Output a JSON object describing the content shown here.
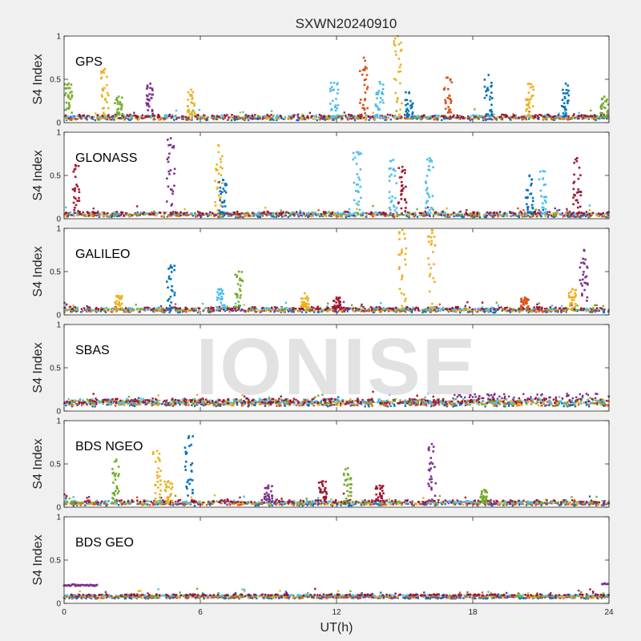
{
  "chart_data": {
    "type": "scatter",
    "title": "SXWN20240910",
    "watermark": "IONISE",
    "xlabel": "UT(h)",
    "ylabel": "S4 Index",
    "xlim": [
      0,
      24
    ],
    "ylim": [
      0,
      1
    ],
    "xticks": [
      0,
      6,
      12,
      18,
      24
    ],
    "yticks": [
      0,
      0.5,
      1
    ],
    "ytick_labels": [
      "0",
      "0.5",
      "1"
    ],
    "grid": false,
    "series_colors": [
      "#0072BD",
      "#D95319",
      "#EDB120",
      "#7E2F8E",
      "#77AC30",
      "#4DBEEE",
      "#A2142F"
    ],
    "panels": [
      {
        "label": "GPS",
        "baseline": 0.06,
        "noise": 0.03,
        "spikes": [
          {
            "x": 0.2,
            "peak": 0.45,
            "color": 4
          },
          {
            "x": 1.8,
            "peak": 0.62,
            "color": 2
          },
          {
            "x": 2.4,
            "peak": 0.3,
            "color": 4
          },
          {
            "x": 3.8,
            "peak": 0.45,
            "color": 3
          },
          {
            "x": 5.6,
            "peak": 0.38,
            "color": 2
          },
          {
            "x": 11.9,
            "peak": 0.46,
            "color": 5
          },
          {
            "x": 13.2,
            "peak": 0.75,
            "color": 1
          },
          {
            "x": 13.9,
            "peak": 0.47,
            "color": 5
          },
          {
            "x": 14.7,
            "peak": 1.0,
            "color": 2
          },
          {
            "x": 15.2,
            "peak": 0.35,
            "color": 0
          },
          {
            "x": 16.9,
            "peak": 0.52,
            "color": 1
          },
          {
            "x": 18.7,
            "peak": 0.55,
            "color": 0
          },
          {
            "x": 20.5,
            "peak": 0.45,
            "color": 2
          },
          {
            "x": 22.1,
            "peak": 0.45,
            "color": 0
          },
          {
            "x": 23.8,
            "peak": 0.3,
            "color": 4
          }
        ]
      },
      {
        "label": "GLONASS",
        "baseline": 0.05,
        "noise": 0.03,
        "spikes": [
          {
            "x": 0.5,
            "peak": 0.62,
            "color": 6
          },
          {
            "x": 4.7,
            "peak": 0.93,
            "color": 3
          },
          {
            "x": 6.8,
            "peak": 0.85,
            "color": 2
          },
          {
            "x": 7.0,
            "peak": 0.45,
            "color": 0
          },
          {
            "x": 12.9,
            "peak": 0.77,
            "color": 5
          },
          {
            "x": 14.5,
            "peak": 0.68,
            "color": 5
          },
          {
            "x": 14.9,
            "peak": 0.6,
            "color": 6
          },
          {
            "x": 16.1,
            "peak": 0.7,
            "color": 5
          },
          {
            "x": 20.5,
            "peak": 0.5,
            "color": 0
          },
          {
            "x": 21.1,
            "peak": 0.55,
            "color": 5
          },
          {
            "x": 22.6,
            "peak": 0.7,
            "color": 6
          }
        ]
      },
      {
        "label": "GALILEO",
        "baseline": 0.06,
        "noise": 0.03,
        "spikes": [
          {
            "x": 2.4,
            "peak": 0.22,
            "color": 2
          },
          {
            "x": 4.7,
            "peak": 0.57,
            "color": 0
          },
          {
            "x": 6.9,
            "peak": 0.3,
            "color": 5
          },
          {
            "x": 7.7,
            "peak": 0.5,
            "color": 4
          },
          {
            "x": 10.6,
            "peak": 0.25,
            "color": 2
          },
          {
            "x": 12.0,
            "peak": 0.2,
            "color": 6
          },
          {
            "x": 14.9,
            "peak": 0.98,
            "color": 2
          },
          {
            "x": 16.2,
            "peak": 0.98,
            "color": 2
          },
          {
            "x": 20.3,
            "peak": 0.2,
            "color": 1
          },
          {
            "x": 22.4,
            "peak": 0.3,
            "color": 2
          },
          {
            "x": 22.9,
            "peak": 0.75,
            "color": 3
          }
        ]
      },
      {
        "label": "SBAS",
        "baseline": 0.1,
        "noise": 0.06,
        "band": true,
        "spikes": []
      },
      {
        "label": "BDS NGEO",
        "baseline": 0.05,
        "noise": 0.03,
        "spikes": [
          {
            "x": 2.3,
            "peak": 0.55,
            "color": 4
          },
          {
            "x": 4.1,
            "peak": 0.65,
            "color": 2
          },
          {
            "x": 4.6,
            "peak": 0.3,
            "color": 2
          },
          {
            "x": 5.5,
            "peak": 0.82,
            "color": 0
          },
          {
            "x": 9.0,
            "peak": 0.25,
            "color": 3
          },
          {
            "x": 11.4,
            "peak": 0.3,
            "color": 6
          },
          {
            "x": 12.5,
            "peak": 0.45,
            "color": 4
          },
          {
            "x": 13.9,
            "peak": 0.25,
            "color": 6
          },
          {
            "x": 16.2,
            "peak": 0.73,
            "color": 3
          },
          {
            "x": 18.5,
            "peak": 0.2,
            "color": 4
          }
        ]
      },
      {
        "label": "BDS GEO",
        "baseline": 0.08,
        "noise": 0.015,
        "band": true,
        "spikes": [],
        "segments": [
          {
            "from": 0.0,
            "to": 1.5,
            "value": 0.21,
            "color": 3
          },
          {
            "from": 23.7,
            "to": 24.0,
            "value": 0.23,
            "color": 3
          }
        ]
      }
    ]
  }
}
